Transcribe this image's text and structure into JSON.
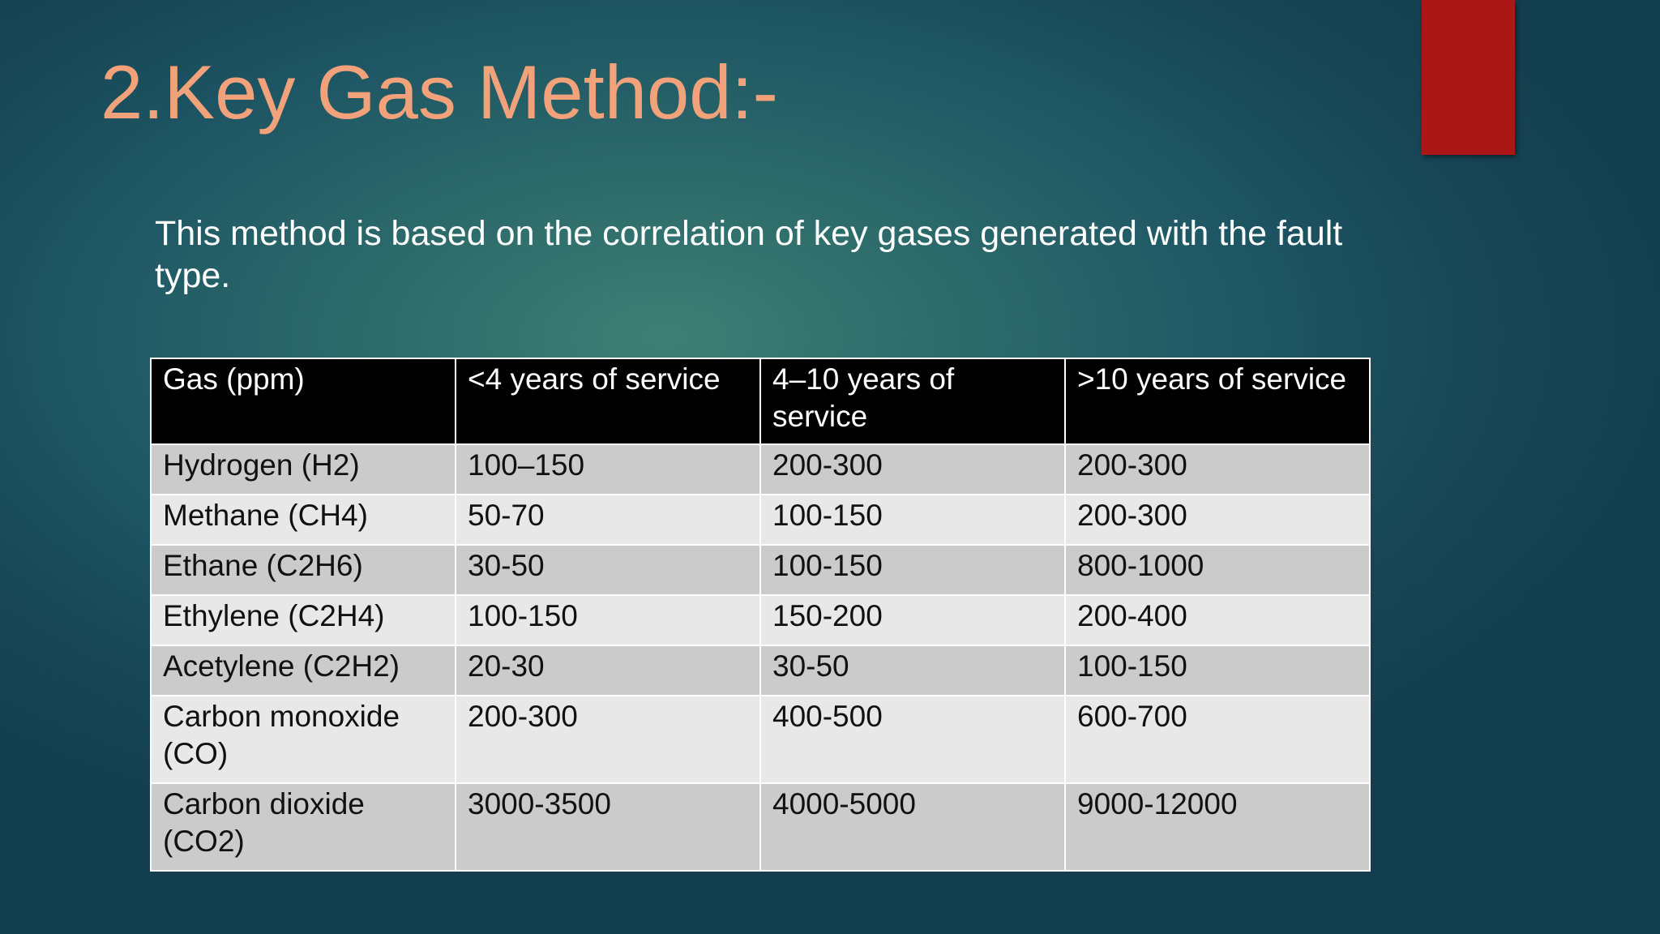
{
  "slide": {
    "title": "2.Key Gas Method:-",
    "intro": "This method is based on the correlation of key gases generated with the fault type."
  },
  "table": {
    "headers": [
      "Gas (ppm)",
      "<4 years of service",
      "4–10 years of service",
      ">10 years of service"
    ],
    "rows": [
      [
        "Hydrogen (H2)",
        "100–150",
        "200-300",
        "200-300"
      ],
      [
        "Methane (CH4)",
        "50-70",
        "100-150",
        "200-300"
      ],
      [
        "Ethane (C2H6)",
        "30-50",
        "100-150",
        "800-1000"
      ],
      [
        "Ethylene (C2H4)",
        "100-150",
        "150-200",
        "200-400"
      ],
      [
        "Acetylene (C2H2)",
        "20-30",
        "30-50",
        "100-150"
      ],
      [
        "Carbon monoxide (CO)",
        "200-300",
        "400-500",
        "600-700"
      ],
      [
        "Carbon dioxide (CO2)",
        "3000-3500",
        "4000-5000",
        "9000-12000"
      ]
    ]
  },
  "colors": {
    "title": "#f1a27a",
    "accent_bar": "#ab1616",
    "header_bg": "#000000",
    "row_odd_bg": "#cbcbcc",
    "row_even_bg": "#e8e8e9"
  }
}
